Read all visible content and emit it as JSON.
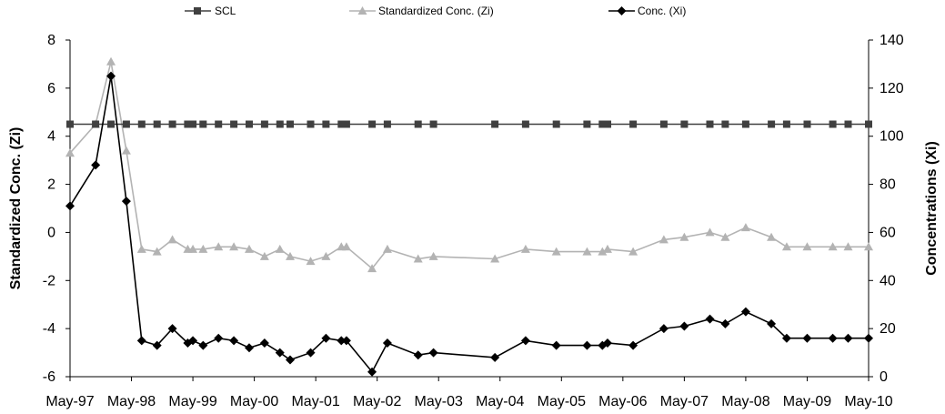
{
  "chart_data": {
    "type": "line",
    "legend_position": "top",
    "grid": false,
    "left_axis": {
      "label": "Standardized  Conc. (Zi)",
      "range": [
        -6,
        8
      ],
      "ticks": [
        "-6",
        "-4",
        "-2",
        "0",
        "2",
        "4",
        "6",
        "8"
      ]
    },
    "right_axis": {
      "label": "Concentrations (Xi)",
      "range": [
        0,
        140
      ],
      "ticks": [
        "0",
        "20",
        "40",
        "60",
        "80",
        "100",
        "120",
        "140"
      ]
    },
    "x_axis": {
      "range": [
        "1997-05",
        "2010-05"
      ],
      "ticks": [
        "May-97",
        "May-98",
        "May-99",
        "May-00",
        "May-01",
        "May-02",
        "May-03",
        "May-04",
        "May-05",
        "May-06",
        "May-07",
        "May-08",
        "May-09",
        "May-10"
      ]
    },
    "series": [
      {
        "name": "SCL",
        "axis": "left",
        "color": "#404040",
        "marker": "square",
        "x": [
          "1997-05",
          "1997-10",
          "1998-01",
          "1998-04",
          "1998-07",
          "1998-10",
          "1999-01",
          "1999-04",
          "1999-05",
          "1999-07",
          "1999-10",
          "2000-01",
          "2000-04",
          "2000-07",
          "2000-10",
          "2000-12",
          "2001-04",
          "2001-07",
          "2001-10",
          "2001-11",
          "2002-04",
          "2002-07",
          "2003-01",
          "2003-04",
          "2004-04",
          "2004-10",
          "2005-04",
          "2005-10",
          "2006-01",
          "2006-02",
          "2006-07",
          "2007-01",
          "2007-05",
          "2007-10",
          "2008-01",
          "2008-05",
          "2008-10",
          "2009-01",
          "2009-05",
          "2009-10",
          "2010-01",
          "2010-05"
        ],
        "y": [
          4.5,
          4.5,
          4.5,
          4.5,
          4.5,
          4.5,
          4.5,
          4.5,
          4.5,
          4.5,
          4.5,
          4.5,
          4.5,
          4.5,
          4.5,
          4.5,
          4.5,
          4.5,
          4.5,
          4.5,
          4.5,
          4.5,
          4.5,
          4.5,
          4.5,
          4.5,
          4.5,
          4.5,
          4.5,
          4.5,
          4.5,
          4.5,
          4.5,
          4.5,
          4.5,
          4.5,
          4.5,
          4.5,
          4.5,
          4.5,
          4.5,
          4.5
        ]
      },
      {
        "name": "Standardized Conc. (Zi)",
        "axis": "left",
        "color": "#b3b3b3",
        "marker": "triangle",
        "x": [
          "1997-05",
          "1997-10",
          "1998-01",
          "1998-04",
          "1998-07",
          "1998-10",
          "1999-01",
          "1999-04",
          "1999-05",
          "1999-07",
          "1999-10",
          "2000-01",
          "2000-04",
          "2000-07",
          "2000-10",
          "2000-12",
          "2001-04",
          "2001-07",
          "2001-10",
          "2001-11",
          "2002-04",
          "2002-07",
          "2003-01",
          "2003-04",
          "2004-04",
          "2004-10",
          "2005-04",
          "2005-10",
          "2006-01",
          "2006-02",
          "2006-07",
          "2007-01",
          "2007-05",
          "2007-10",
          "2008-01",
          "2008-05",
          "2008-10",
          "2009-01",
          "2009-05",
          "2009-10",
          "2010-01",
          "2010-05"
        ],
        "y": [
          3.3,
          4.5,
          7.1,
          3.4,
          -0.7,
          -0.8,
          -0.3,
          -0.7,
          -0.7,
          -0.7,
          -0.6,
          -0.6,
          -0.7,
          -1.0,
          -0.7,
          -1.0,
          -1.2,
          -1.0,
          -0.6,
          -0.6,
          -1.5,
          -0.7,
          -1.1,
          -1.0,
          -1.1,
          -0.7,
          -0.8,
          -0.8,
          -0.8,
          -0.7,
          -0.8,
          -0.3,
          -0.2,
          0.0,
          -0.2,
          0.2,
          -0.2,
          -0.6,
          -0.6,
          -0.6,
          -0.6,
          -0.6
        ]
      },
      {
        "name": "Conc. (Xi)",
        "axis": "right",
        "color": "#000000",
        "marker": "diamond",
        "x": [
          "1997-05",
          "1997-10",
          "1998-01",
          "1998-04",
          "1998-07",
          "1998-10",
          "1999-01",
          "1999-04",
          "1999-05",
          "1999-07",
          "1999-10",
          "2000-01",
          "2000-04",
          "2000-07",
          "2000-10",
          "2000-12",
          "2001-04",
          "2001-07",
          "2001-10",
          "2001-11",
          "2002-04",
          "2002-07",
          "2003-01",
          "2003-04",
          "2004-04",
          "2004-10",
          "2005-04",
          "2005-10",
          "2006-01",
          "2006-02",
          "2006-07",
          "2007-01",
          "2007-05",
          "2007-10",
          "2008-01",
          "2008-05",
          "2008-10",
          "2009-01",
          "2009-05",
          "2009-10",
          "2010-01",
          "2010-05"
        ],
        "y": [
          71,
          88,
          125,
          73,
          15,
          13,
          20,
          14,
          15,
          13,
          16,
          15,
          12,
          14,
          10,
          7,
          10,
          16,
          15,
          15,
          2,
          14,
          9,
          10,
          8,
          15,
          13,
          13,
          13,
          14,
          13,
          20,
          21,
          24,
          22,
          27,
          22,
          16,
          16,
          16,
          16,
          16
        ]
      }
    ]
  }
}
